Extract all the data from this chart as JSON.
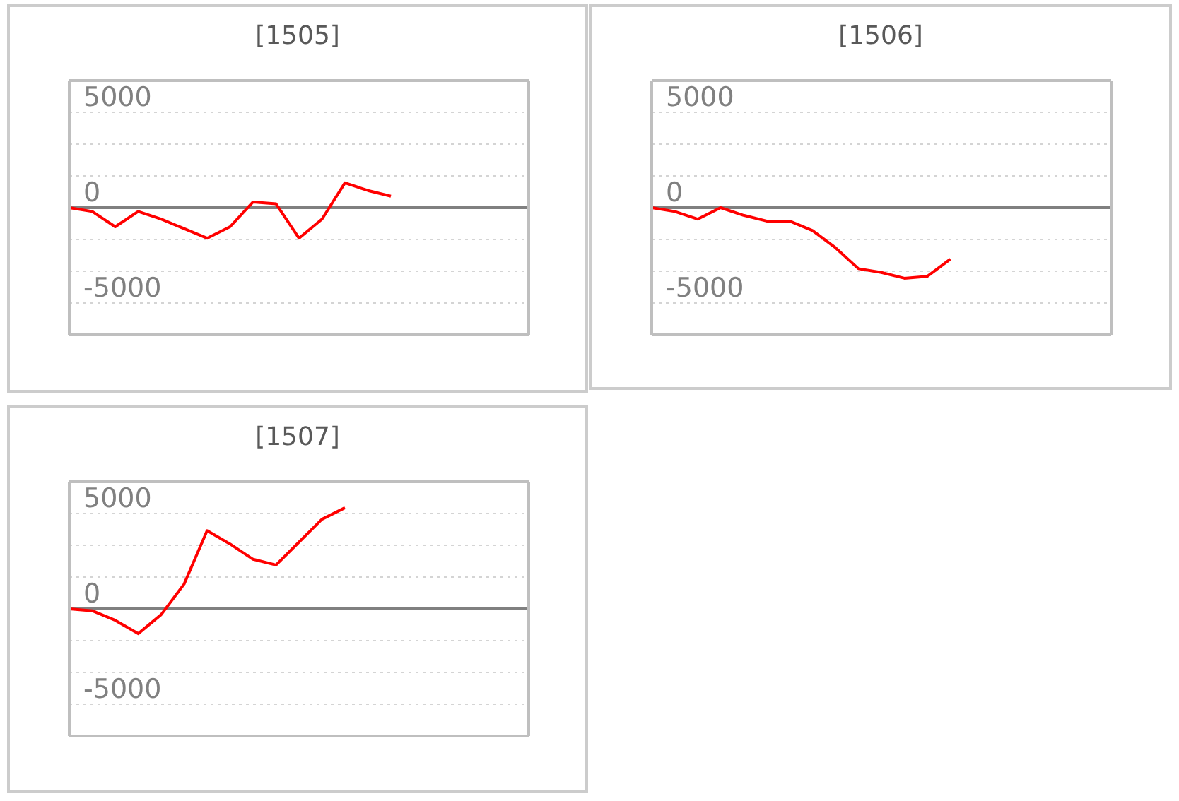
{
  "chart_data": [
    {
      "type": "line",
      "title": "[1505]",
      "categories": [
        null,
        null,
        null,
        null,
        null,
        null,
        null,
        null,
        null,
        null,
        null,
        null,
        null,
        null,
        null,
        null,
        null,
        null,
        null,
        null,
        null
      ],
      "ylim": [
        -6667,
        6667
      ],
      "yticks": [
        5000,
        {
          "value": 3333,
          "label": null
        },
        {
          "value": 1667,
          "label": null
        },
        0,
        {
          "value": -1667,
          "label": null
        },
        {
          "value": -3333,
          "label": null
        },
        -5000
      ],
      "grid": "y",
      "tick_labels": "y",
      "marker": "none",
      "series": [
        {
          "color": "#ff0000",
          "values": [
            0,
            -200,
            -1000,
            -200,
            -600,
            -1100,
            -1600,
            -1000,
            300,
            200,
            -1600,
            -600,
            1300,
            900,
            600,
            null,
            null,
            null,
            null,
            null,
            null
          ]
        }
      ]
    },
    {
      "type": "line",
      "title": "[1506]",
      "categories": [
        null,
        null,
        null,
        null,
        null,
        null,
        null,
        null,
        null,
        null,
        null,
        null,
        null,
        null,
        null,
        null,
        null,
        null,
        null,
        null,
        null
      ],
      "ylim": [
        -6667,
        6667
      ],
      "yticks": [
        5000,
        {
          "value": 3333,
          "label": null
        },
        {
          "value": 1667,
          "label": null
        },
        0,
        {
          "value": -1667,
          "label": null
        },
        {
          "value": -3333,
          "label": null
        },
        -5000
      ],
      "grid": "y",
      "tick_labels": "y",
      "marker": "none",
      "series": [
        {
          "color": "#ff0000",
          "values": [
            0,
            -200,
            -600,
            0,
            -400,
            -700,
            -700,
            -1200,
            -2100,
            -3200,
            -3400,
            -3700,
            -3600,
            -2700,
            null,
            null,
            null,
            null,
            null,
            null,
            null
          ]
        }
      ]
    },
    {
      "type": "line",
      "title": "[1507]",
      "categories": [
        null,
        null,
        null,
        null,
        null,
        null,
        null,
        null,
        null,
        null,
        null,
        null,
        null,
        null,
        null,
        null,
        null,
        null,
        null,
        null,
        null
      ],
      "ylim": [
        -6667,
        6667
      ],
      "yticks": [
        5000,
        {
          "value": 3333,
          "label": null
        },
        {
          "value": 1667,
          "label": null
        },
        0,
        {
          "value": -1667,
          "label": null
        },
        {
          "value": -3333,
          "label": null
        },
        -5000
      ],
      "grid": "y",
      "tick_labels": "y",
      "marker": "none",
      "series": [
        {
          "color": "#ff0000",
          "values": [
            0,
            -100,
            -600,
            -1300,
            -300,
            1300,
            4100,
            3400,
            2600,
            2300,
            3500,
            4700,
            5300,
            null,
            null,
            null,
            null,
            null,
            null,
            null,
            null
          ]
        }
      ]
    }
  ]
}
